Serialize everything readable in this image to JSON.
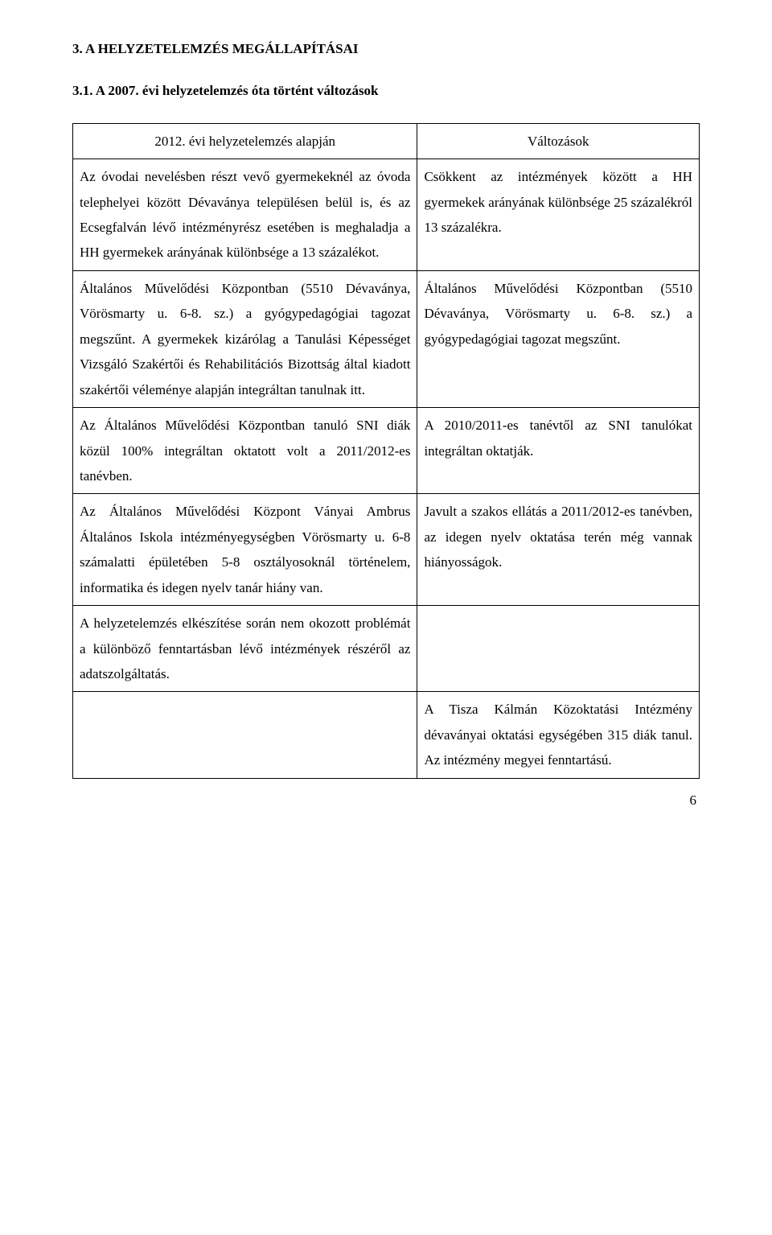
{
  "heading1": "3. A HELYZETELEMZÉS MEGÁLLAPÍTÁSAI",
  "heading2": "3.1. A 2007. évi helyzetelemzés óta történt változások",
  "table": {
    "header_left": "2012. évi helyzetelemzés alapján",
    "header_right": "Változások",
    "rows": [
      {
        "left": "Az óvodai nevelésben részt vevő gyermekeknél az óvoda telephelyei között Dévaványa településen belül is, és az Ecsegfalván lévő intézményrész esetében is meghaladja a HH gyermekek arányának különbsége a 13 százalékot.",
        "right": "Csökkent az intézmények között a HH gyermekek arányának különbsége 25 százalékról 13 százalékra."
      },
      {
        "left": "Általános Művelődési Központban (5510 Dévaványa, Vörösmarty u. 6-8. sz.) a gyógypedagógiai tagozat megszűnt. A gyermekek kizárólag a Tanulási Képességet Vizsgáló Szakértői és Rehabilitációs Bizottság által kiadott szakértői véleménye alapján integráltan tanulnak itt.",
        "right": "Általános Művelődési Központban (5510 Dévaványa, Vörösmarty u. 6-8. sz.) a gyógypedagógiai tagozat megszűnt."
      },
      {
        "left": "Az Általános Művelődési Központban tanuló SNI diák közül 100% integráltan oktatott volt a 2011/2012-es tanévben.",
        "right": "A 2010/2011-es tanévtől az SNI tanulókat integráltan oktatják."
      },
      {
        "left": "Az Általános Művelődési Központ Ványai Ambrus Általános Iskola intézményegységben Vörösmarty u. 6-8 számalatti épületében 5-8 osztályosoknál történelem, informatika és idegen nyelv tanár hiány van.",
        "right": "Javult a szakos ellátás a 2011/2012-es tanévben, az idegen nyelv oktatása terén még vannak hiányosságok."
      },
      {
        "left": "A helyzetelemzés elkészítése során nem okozott problémát a különböző fenntartásban lévő intézmények részéről az adatszolgáltatás.",
        "right": ""
      },
      {
        "left": "",
        "right": "A Tisza Kálmán Közoktatási Intézmény dévaványai oktatási egységében 315 diák tanul. Az intézmény megyei fenntartású."
      }
    ]
  },
  "page_number": "6"
}
